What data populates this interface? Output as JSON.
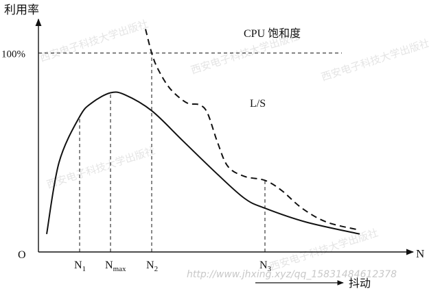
{
  "chart_data": {
    "type": "line",
    "ylabel": "利用率",
    "xlabel": "N",
    "origin_label": "O",
    "ref_line": {
      "label": "100%",
      "value": 100
    },
    "x_ticks": [
      {
        "label": "N",
        "sub": "1",
        "x": 1
      },
      {
        "label": "N",
        "sub": "max",
        "x": 1.75
      },
      {
        "label": "N",
        "sub": "2",
        "x": 2.75
      },
      {
        "label": "N",
        "sub": "3",
        "x": 5.5
      }
    ],
    "annotations": [
      {
        "text": "CPU 饱和度",
        "x": 5.1,
        "y": 108
      },
      {
        "text": "L/S",
        "x": 5.25,
        "y": 73
      }
    ],
    "bottom_note": "抖动",
    "series": [
      {
        "style": "solid",
        "x": [
          0.2,
          0.5,
          1.0,
          1.3,
          1.75,
          2.1,
          2.75,
          3.5,
          4.3,
          5.0,
          5.5,
          6.5,
          7.8
        ],
        "y": [
          9,
          45,
          68,
          75,
          80,
          79,
          71,
          56,
          40,
          27,
          22,
          15,
          9
        ]
      },
      {
        "style": "dashed",
        "x": [
          2.6,
          2.75,
          2.9,
          3.2,
          3.6,
          3.9,
          4.1,
          4.35,
          4.6,
          5.0,
          5.5,
          5.9,
          6.4,
          7.0,
          7.8
        ],
        "y": [
          112,
          100,
          92,
          82,
          75,
          74,
          70,
          55,
          43,
          38,
          36,
          31,
          22,
          15,
          11
        ]
      }
    ],
    "xlim": [
      0,
      9
    ],
    "ylim": [
      0,
      117
    ]
  },
  "watermarks": [
    "西安电子科技大学出版社",
    "西安电子科技大学出版社",
    "西安电子科技大学出版社",
    "西安电子科技大学出版社",
    "西安电子科技大学出版社"
  ],
  "url_text": "http://www.jhxing.xyz/qq_15831484612378"
}
